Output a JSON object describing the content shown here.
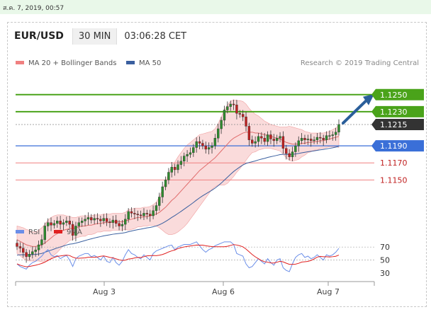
{
  "header": {
    "timestamp": "ส.ค. 7, 2019, 00:57",
    "pair": "EUR/USD",
    "timeframe": "30 MIN",
    "time": "03:06:28 CET"
  },
  "legend": {
    "ma20": "MA 20 + Bollinger Bands",
    "ma50": "MA 50",
    "credit": "Research © 2019 Trading Central"
  },
  "colors": {
    "candle_up": "#2e8b2e",
    "candle_down": "#c02020",
    "bands": "#f6c3c3",
    "ma20": "#e06c6c",
    "ma50": "#3a5f9f",
    "resistance": "#4aa31a",
    "pivot": "#3a6fd8",
    "support": "#f08080",
    "current": "#333333",
    "arrow": "#2a5e9a",
    "rsi": "#6a8ee8",
    "rsi_ma": "#e02020"
  },
  "chart_data": {
    "type": "candlestick",
    "x_ticks": [
      "Aug 3",
      "Aug 6",
      "Aug 7"
    ],
    "ylim": [
      1.1108,
      1.1278
    ],
    "levels": [
      {
        "label": "1.1250",
        "value": 1.125,
        "kind": "resistance"
      },
      {
        "label": "1.1230",
        "value": 1.123,
        "kind": "resistance"
      },
      {
        "label": "1.1215",
        "value": 1.1215,
        "kind": "current"
      },
      {
        "label": "1.1190",
        "value": 1.119,
        "kind": "pivot"
      },
      {
        "label": "1.1170",
        "value": 1.117,
        "kind": "support"
      },
      {
        "label": "1.1150",
        "value": 1.115,
        "kind": "support"
      }
    ],
    "close": [
      1.1072,
      1.107,
      1.1065,
      1.106,
      1.1063,
      1.1066,
      1.1068,
      1.1074,
      1.108,
      1.1096,
      1.11,
      1.1097,
      1.1099,
      1.1102,
      1.1098,
      1.11,
      1.1102,
      1.1098,
      1.1085,
      1.1096,
      1.11,
      1.1102,
      1.1104,
      1.1106,
      1.1103,
      1.1105,
      1.1104,
      1.1102,
      1.1105,
      1.1101,
      1.11,
      1.1103,
      1.1099,
      1.1096,
      1.1098,
      1.1104,
      1.1113,
      1.1111,
      1.111,
      1.1109,
      1.1108,
      1.1111,
      1.111,
      1.1108,
      1.1114,
      1.112,
      1.113,
      1.1142,
      1.115,
      1.1159,
      1.1165,
      1.1162,
      1.1168,
      1.1172,
      1.1178,
      1.118,
      1.1182,
      1.1188,
      1.1195,
      1.1193,
      1.119,
      1.1186,
      1.1188,
      1.119,
      1.1199,
      1.121,
      1.122,
      1.1232,
      1.1236,
      1.1239,
      1.1238,
      1.1228,
      1.1227,
      1.1224,
      1.1213,
      1.1197,
      1.1193,
      1.1195,
      1.1201,
      1.1199,
      1.1195,
      1.1203,
      1.1198,
      1.1196,
      1.1199,
      1.1201,
      1.1187,
      1.1181,
      1.1177,
      1.1183,
      1.119,
      1.1196,
      1.1199,
      1.1197,
      1.1198,
      1.1196,
      1.1197,
      1.12,
      1.1199,
      1.1197,
      1.1202,
      1.1202,
      1.1203,
      1.1206,
      1.1215
    ],
    "ma20": [
      1.108,
      1.1078,
      1.1076,
      1.1074,
      1.1073,
      1.1072,
      1.1072,
      1.1073,
      1.1074,
      1.1076,
      1.1079,
      1.1082,
      1.1085,
      1.1087,
      1.1089,
      1.1091,
      1.1092,
      1.1093,
      1.1093,
      1.1094,
      1.1095,
      1.1096,
      1.1096,
      1.1097,
      1.1097,
      1.1098,
      1.1099,
      1.1099,
      1.11,
      1.11,
      1.11,
      1.1101,
      1.1101,
      1.1101,
      1.1101,
      1.1102,
      1.1103,
      1.1104,
      1.1105,
      1.1106,
      1.1106,
      1.1107,
      1.1107,
      1.1108,
      1.1109,
      1.111,
      1.1112,
      1.1115,
      1.1118,
      1.1122,
      1.1126,
      1.1129,
      1.1133,
      1.1137,
      1.1141,
      1.1145,
      1.1149,
      1.1153,
      1.1157,
      1.1161,
      1.1164,
      1.1167,
      1.117,
      1.1173,
      1.1176,
      1.118,
      1.1184,
      1.1188,
      1.1192,
      1.1196,
      1.1199,
      1.1201,
      1.1203,
      1.1205,
      1.1206,
      1.1206,
      1.1206,
      1.1205,
      1.1205,
      1.1204,
      1.1203,
      1.1202,
      1.1201,
      1.12,
      1.1199,
      1.1198,
      1.1196,
      1.1194,
      1.1193,
      1.1192,
      1.1192,
      1.1192,
      1.1193,
      1.1193,
      1.1194,
      1.1194,
      1.1195,
      1.1195,
      1.1196,
      1.1196,
      1.1197,
      1.1198,
      1.1199,
      1.12,
      1.1201
    ],
    "bb_width": [
      0.0016,
      0.0017,
      0.0018,
      0.0018,
      0.0018,
      0.0017,
      0.0017,
      0.0018,
      0.002,
      0.0022,
      0.0024,
      0.0024,
      0.0023,
      0.0022,
      0.002,
      0.0018,
      0.0016,
      0.0014,
      0.0013,
      0.0012,
      0.0012,
      0.0012,
      0.0012,
      0.0011,
      0.0011,
      0.0011,
      0.001,
      0.001,
      0.001,
      0.001,
      0.001,
      0.001,
      0.001,
      0.001,
      0.001,
      0.001,
      0.0012,
      0.0012,
      0.0012,
      0.0011,
      0.0011,
      0.0011,
      0.0011,
      0.0011,
      0.0012,
      0.0014,
      0.0018,
      0.0024,
      0.003,
      0.0036,
      0.004,
      0.0042,
      0.0044,
      0.0045,
      0.0046,
      0.0046,
      0.0045,
      0.0044,
      0.0043,
      0.0042,
      0.004,
      0.0038,
      0.0036,
      0.0034,
      0.0034,
      0.0036,
      0.004,
      0.0044,
      0.0046,
      0.0046,
      0.0045,
      0.0042,
      0.004,
      0.0037,
      0.0033,
      0.0028,
      0.0024,
      0.0022,
      0.002,
      0.0018,
      0.0016,
      0.0015,
      0.0014,
      0.0014,
      0.0014,
      0.0014,
      0.0016,
      0.0018,
      0.002,
      0.002,
      0.0019,
      0.0018,
      0.0016,
      0.0014,
      0.0012,
      0.0011,
      0.001,
      0.001,
      0.0009,
      0.0009,
      0.0009,
      0.0009,
      0.001,
      0.0011,
      0.0013
    ],
    "ma50_start": 1.1062,
    "rsi_ticks": [
      70,
      50,
      30
    ],
    "rsi_ylim": [
      20,
      80
    ],
    "rsi_legend": [
      "RSI",
      "9MA"
    ],
    "rsi": [
      44,
      40,
      38,
      36,
      42,
      46,
      48,
      52,
      56,
      62,
      66,
      58,
      55,
      57,
      52,
      55,
      57,
      50,
      40,
      52,
      56,
      58,
      60,
      60,
      55,
      57,
      54,
      50,
      56,
      48,
      46,
      54,
      46,
      42,
      48,
      58,
      66,
      60,
      58,
      54,
      52,
      58,
      54,
      50,
      60,
      64,
      66,
      68,
      70,
      72,
      73,
      66,
      70,
      72,
      74,
      74,
      74,
      76,
      78,
      72,
      66,
      62,
      66,
      68,
      72,
      74,
      76,
      78,
      78,
      78,
      74,
      60,
      58,
      56,
      44,
      38,
      40,
      46,
      52,
      48,
      44,
      52,
      46,
      42,
      50,
      52,
      38,
      34,
      32,
      44,
      54,
      58,
      60,
      54,
      56,
      52,
      54,
      58,
      54,
      50,
      58,
      56,
      58,
      62,
      68
    ]
  }
}
